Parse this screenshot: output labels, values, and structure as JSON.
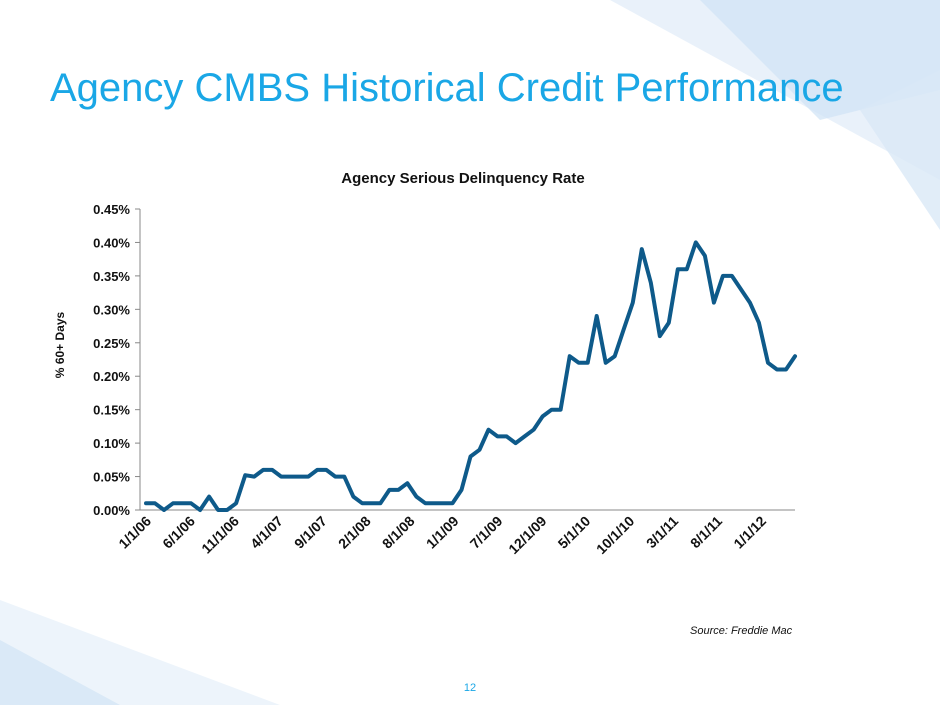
{
  "slide": {
    "title": "Agency CMBS Historical Credit Performance",
    "source": "Source: Freddie Mac",
    "page_number": "12"
  },
  "colors": {
    "title": "#1aa7e6",
    "line": "#0e5a8a",
    "decoration": "#d6e8f7"
  },
  "chart_data": {
    "type": "line",
    "title": "Agency Serious Delinquency Rate",
    "xlabel": "",
    "ylabel": "% 60+ Days",
    "ylim": [
      0,
      0.45
    ],
    "y_ticks": [
      "0.00%",
      "0.05%",
      "0.10%",
      "0.15%",
      "0.20%",
      "0.25%",
      "0.30%",
      "0.35%",
      "0.40%",
      "0.45%"
    ],
    "x_ticks": [
      "1/1/06",
      "6/1/06",
      "11/1/06",
      "4/1/07",
      "9/1/07",
      "2/1/08",
      "8/1/08",
      "1/1/09",
      "7/1/09",
      "12/1/09",
      "5/1/10",
      "10/1/10",
      "3/1/11",
      "8/1/11",
      "1/1/12"
    ],
    "grid": false,
    "legend": "none",
    "series": [
      {
        "values": [
          0.01,
          0.01,
          0.0,
          0.01,
          0.01,
          0.01,
          0.0,
          0.02,
          0.0,
          0.0,
          0.01,
          0.052,
          0.05,
          0.06,
          0.06,
          0.05,
          0.05,
          0.05,
          0.05,
          0.06,
          0.06,
          0.05,
          0.05,
          0.02,
          0.01,
          0.01,
          0.01,
          0.03,
          0.03,
          0.04,
          0.02,
          0.01,
          0.01,
          0.01,
          0.01,
          0.03,
          0.08,
          0.09,
          0.12,
          0.11,
          0.11,
          0.1,
          0.11,
          0.12,
          0.14,
          0.15,
          0.15,
          0.23,
          0.22,
          0.22,
          0.29,
          0.22,
          0.23,
          0.27,
          0.31,
          0.39,
          0.34,
          0.26,
          0.28,
          0.36,
          0.36,
          0.4,
          0.38,
          0.31,
          0.35,
          0.35,
          0.33,
          0.31,
          0.28,
          0.22,
          0.21,
          0.21,
          0.23
        ]
      }
    ]
  }
}
